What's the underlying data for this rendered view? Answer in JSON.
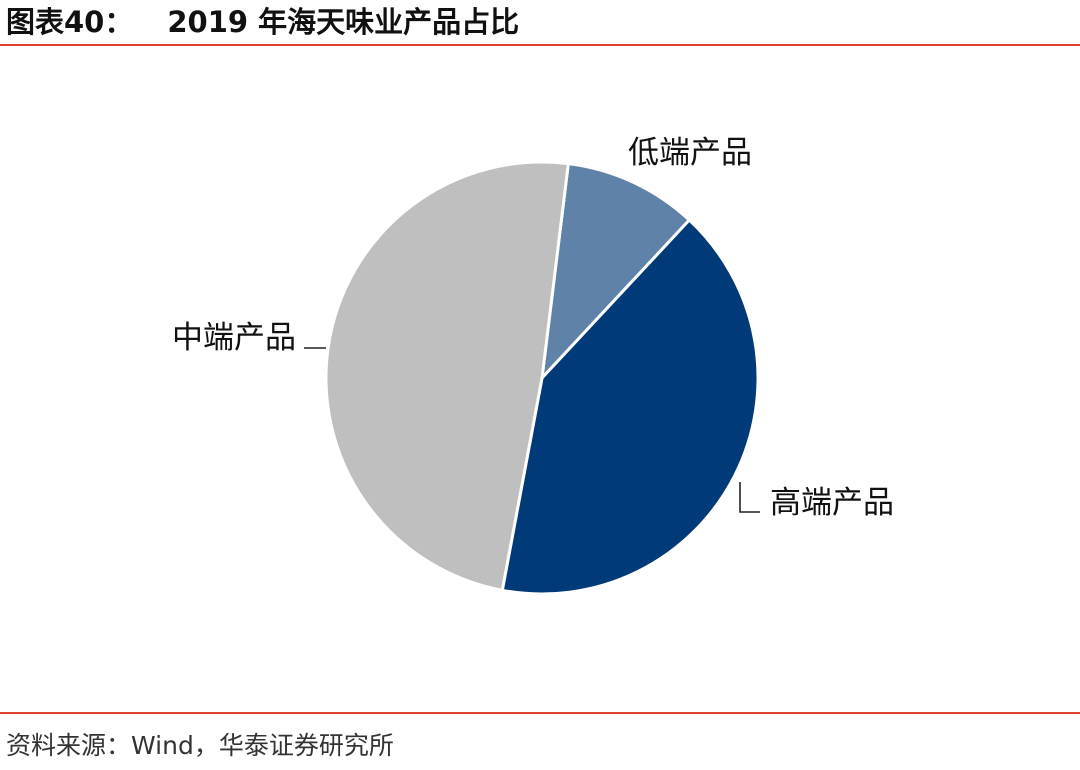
{
  "header": {
    "figure_no": "图表40：",
    "title": "2019 年海天味业产品占比"
  },
  "footer": {
    "source": "资料来源：Wind，华泰证券研究所"
  },
  "colors": {
    "accent_rule": "#e0402e",
    "low_end": "#5f82a9",
    "high_end": "#003a78",
    "mid_end": "#bfbfbf"
  },
  "chart_data": {
    "type": "pie",
    "title": "2019 年海天味业产品占比",
    "slices": [
      {
        "label": "低端产品",
        "value": 10,
        "color": "#5f82a9"
      },
      {
        "label": "高端产品",
        "value": 41,
        "color": "#003a78"
      },
      {
        "label": "中端产品",
        "value": 49,
        "color": "#bfbfbf"
      }
    ],
    "start_angle_deg": 7,
    "direction": "clockwise",
    "legend": "none"
  }
}
